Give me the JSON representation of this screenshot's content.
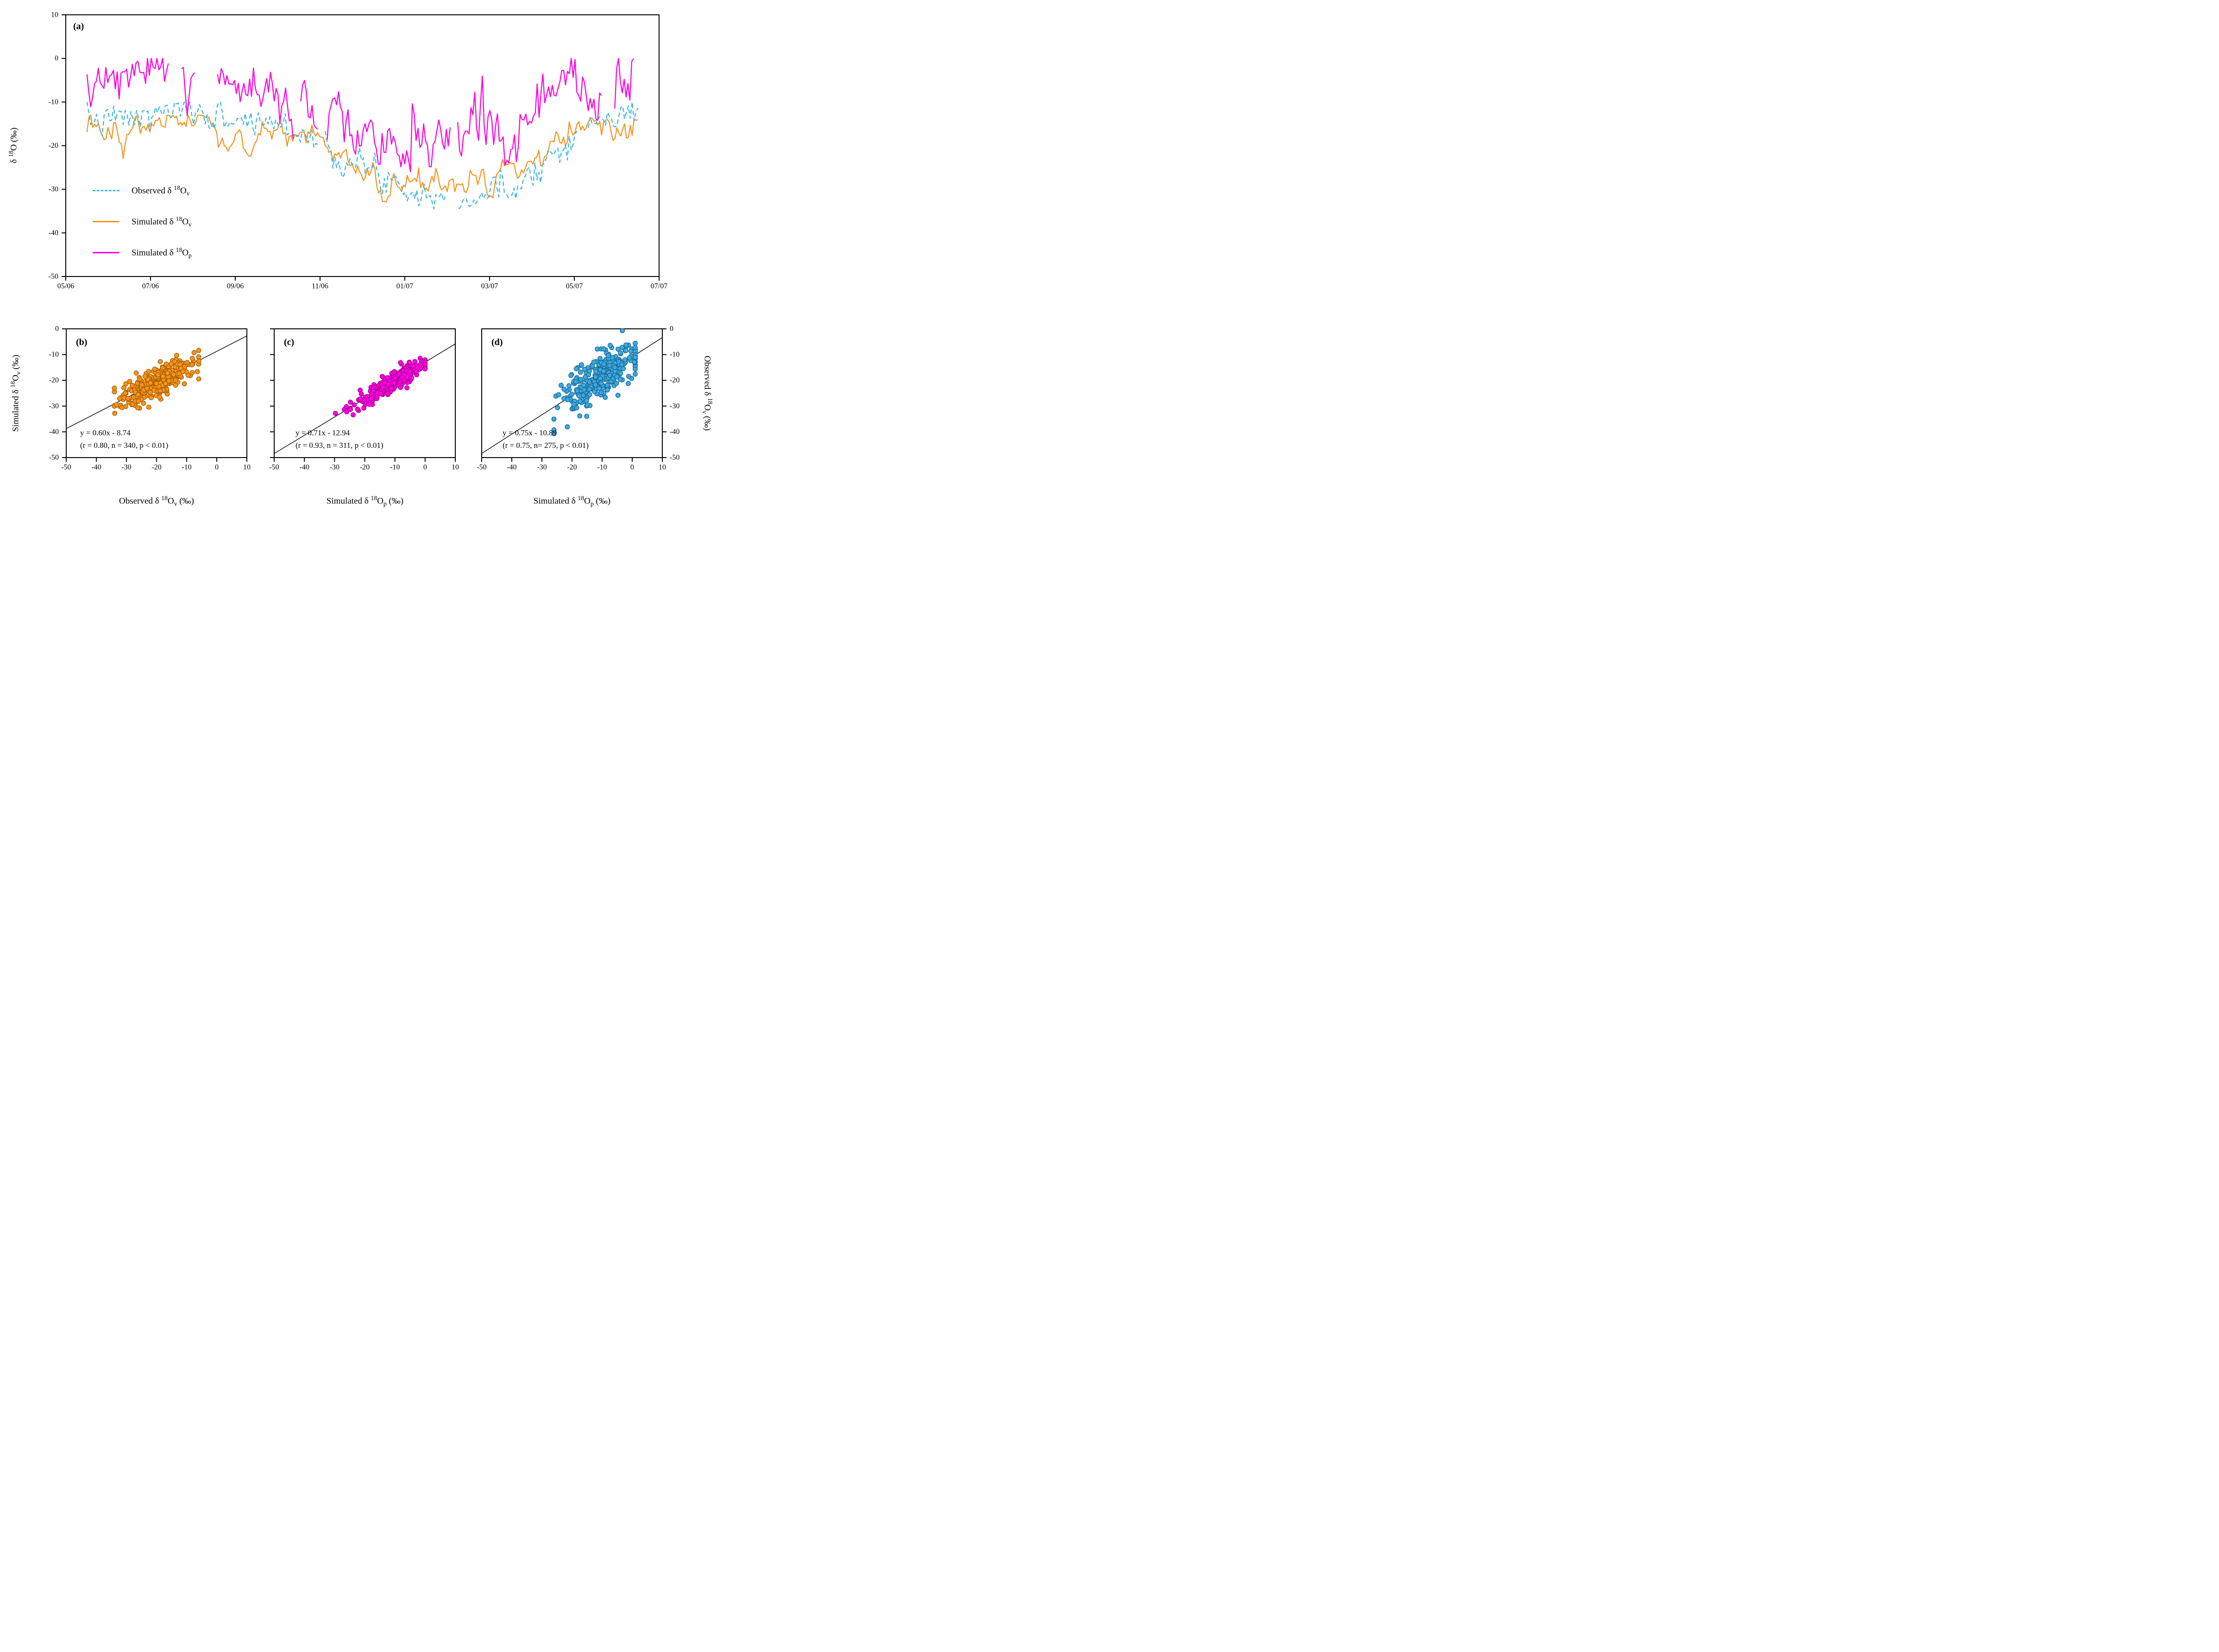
{
  "figure": {
    "background": "#ffffff",
    "axis_color": "#000000"
  },
  "panel_letters": {
    "a": "(a)",
    "b": "(b)",
    "c": "(c)",
    "d": "(d)"
  },
  "labels": {
    "a_y": {
      "pre": "δ ",
      "sup": "18",
      "base": "O",
      "sub": "",
      "post": " (‰)"
    },
    "b_x": {
      "pre": "Observed δ ",
      "sup": "18",
      "base": "O",
      "sub": "v",
      "post": " (‰)"
    },
    "b_y": {
      "pre": "Simulated δ ",
      "sup": "18",
      "base": "O",
      "sub": "v",
      "post": " (‰)"
    },
    "c_x": {
      "pre": "Simulated δ ",
      "sup": "18",
      "base": "O",
      "sub": "p",
      "post": " (‰)"
    },
    "d_x": {
      "pre": "Simulated δ ",
      "sup": "18",
      "base": "O",
      "sub": "p",
      "post": " (‰)"
    },
    "d_y": {
      "pre": "Observed δ ",
      "sup": "18",
      "base": "O",
      "sub": "v",
      "post": " (‰)"
    }
  },
  "legend": {
    "items": [
      {
        "pre": "Observed δ ",
        "sup": "18",
        "base": "O",
        "sub": "v",
        "style": "dashed",
        "color": "#3cb4e8"
      },
      {
        "pre": "Simulated δ ",
        "sup": "18",
        "base": "O",
        "sub": "v",
        "style": "solid",
        "color": "#f7941e"
      },
      {
        "pre": "Simulated δ ",
        "sup": "18",
        "base": "O",
        "sub": "p",
        "style": "solid",
        "color": "#ff00e1"
      }
    ]
  },
  "equations": {
    "b": {
      "line1": "y = 0.60x - 8.74",
      "line2": "(r = 0.80, n = 340, p < 0.01)"
    },
    "c": {
      "line1": "y = 0.71x - 12.94",
      "line2": "(r = 0.93, n = 311, p < 0.01)"
    },
    "d": {
      "line1": "y = 0.75x - 10.89",
      "line2": "(r = 0.75, n= 275, p < 0.01)"
    }
  },
  "chart_data": [
    {
      "panel": "a",
      "type": "line",
      "title": "",
      "x_axis": {
        "range": [
          0,
          14
        ],
        "tick_positions": [
          0,
          2,
          4,
          6,
          8,
          10,
          12,
          14
        ],
        "tick_labels": [
          "05/06",
          "07/06",
          "09/06",
          "11/06",
          "01/07",
          "03/07",
          "05/07",
          "07/07"
        ]
      },
      "y_axis": {
        "label": "δ18O (‰)",
        "range": [
          -50,
          10
        ],
        "ticks": [
          10,
          0,
          -10,
          -20,
          -30,
          -40,
          -50
        ]
      },
      "series": [
        {
          "name": "Observed δ18Ov",
          "color": "#3cb4e8",
          "line": "dashed",
          "z": 1,
          "seed": 7,
          "n": 290,
          "sigma": 1.8,
          "smooth": 0.35,
          "gap_prob": 0.006,
          "clamp_min": -34.5,
          "clamp_max": -10,
          "anchors": [
            [
              0.5,
              -14
            ],
            [
              1,
              -14.5
            ],
            [
              1.5,
              -13.5
            ],
            [
              2,
              -14
            ],
            [
              2.3,
              -11.5
            ],
            [
              2.8,
              -13
            ],
            [
              3.2,
              -12
            ],
            [
              3.6,
              -14
            ],
            [
              4,
              -13.5
            ],
            [
              4.4,
              -15
            ],
            [
              4.8,
              -14
            ],
            [
              5.2,
              -16
            ],
            [
              5.6,
              -17
            ],
            [
              6,
              -19
            ],
            [
              6.4,
              -22
            ],
            [
              6.8,
              -24
            ],
            [
              7.2,
              -26
            ],
            [
              7.6,
              -27
            ],
            [
              8,
              -29
            ],
            [
              8.4,
              -31
            ],
            [
              8.8,
              -32
            ],
            [
              9.2,
              -31
            ],
            [
              9.6,
              -33
            ],
            [
              10,
              -30
            ],
            [
              10.4,
              -31
            ],
            [
              10.8,
              -27
            ],
            [
              11.2,
              -24
            ],
            [
              11.6,
              -21
            ],
            [
              12,
              -17
            ],
            [
              12.4,
              -15
            ],
            [
              12.8,
              -14
            ],
            [
              13.2,
              -13
            ],
            [
              13.5,
              -12.5
            ]
          ]
        },
        {
          "name": "Simulated δ18Ov",
          "color": "#f7941e",
          "line": "solid",
          "z": 0,
          "seed": 13,
          "n": 290,
          "sigma": 1.5,
          "smooth": 0.45,
          "gap_prob": 0,
          "clamp_min": -35.2,
          "clamp_max": -13,
          "anchors": [
            [
              0.5,
              -16
            ],
            [
              1,
              -16.5
            ],
            [
              1.4,
              -19
            ],
            [
              1.6,
              -16
            ],
            [
              2,
              -15.5
            ],
            [
              2.4,
              -14
            ],
            [
              2.8,
              -16
            ],
            [
              3.2,
              -15
            ],
            [
              3.5,
              -17
            ],
            [
              3.8,
              -20
            ],
            [
              4.1,
              -17
            ],
            [
              4.3,
              -24
            ],
            [
              4.6,
              -17
            ],
            [
              5,
              -16
            ],
            [
              5.4,
              -17
            ],
            [
              5.8,
              -18
            ],
            [
              6.2,
              -21
            ],
            [
              6.6,
              -24
            ],
            [
              7,
              -27
            ],
            [
              7.4,
              -29
            ],
            [
              7.55,
              -34
            ],
            [
              7.7,
              -28
            ],
            [
              8,
              -27
            ],
            [
              8.4,
              -29
            ],
            [
              8.8,
              -28
            ],
            [
              9.2,
              -30
            ],
            [
              9.6,
              -26
            ],
            [
              10,
              -29
            ],
            [
              10.3,
              -26
            ],
            [
              10.7,
              -27
            ],
            [
              11,
              -24
            ],
            [
              11.4,
              -21
            ],
            [
              11.8,
              -18
            ],
            [
              12.2,
              -16
            ],
            [
              12.6,
              -15.5
            ],
            [
              13,
              -16
            ],
            [
              13.5,
              -14.5
            ]
          ]
        },
        {
          "name": "Simulated δ18Op",
          "color": "#ff00e1",
          "line": "solid",
          "z": 2,
          "seed": 5,
          "n": 290,
          "sigma": 3.2,
          "smooth": 0.3,
          "gap_prob": 0.02,
          "clamp_min": -26,
          "clamp_max": 0,
          "anchors": [
            [
              0.5,
              -4
            ],
            [
              0.8,
              -5
            ],
            [
              1.1,
              -9
            ],
            [
              1.4,
              -5
            ],
            [
              1.7,
              -4
            ],
            [
              2,
              -3
            ],
            [
              2.3,
              -1
            ],
            [
              2.6,
              -4
            ],
            [
              2.9,
              -6
            ],
            [
              3.2,
              -5
            ],
            [
              3.5,
              -7
            ],
            [
              3.8,
              -5
            ],
            [
              4.1,
              -8
            ],
            [
              4.4,
              -4
            ],
            [
              4.7,
              -6
            ],
            [
              5,
              -8
            ],
            [
              5.3,
              -12
            ],
            [
              5.6,
              -9
            ],
            [
              5.9,
              -13
            ],
            [
              6.2,
              -16
            ],
            [
              6.5,
              -11
            ],
            [
              6.8,
              -19
            ],
            [
              7.1,
              -15
            ],
            [
              7.4,
              -22
            ],
            [
              7.7,
              -17
            ],
            [
              8,
              -21
            ],
            [
              8.3,
              -15
            ],
            [
              8.6,
              -22
            ],
            [
              8.9,
              -16
            ],
            [
              9.2,
              -14
            ],
            [
              9.5,
              -18
            ],
            [
              9.8,
              -13
            ],
            [
              10.1,
              -17
            ],
            [
              10.4,
              -23
            ],
            [
              10.7,
              -12
            ],
            [
              11,
              -10
            ],
            [
              11.3,
              -8
            ],
            [
              11.6,
              -6
            ],
            [
              11.9,
              -7
            ],
            [
              12.2,
              -4
            ],
            [
              12.5,
              -7
            ],
            [
              12.8,
              -5
            ],
            [
              13.1,
              -8
            ],
            [
              13.4,
              -5
            ]
          ]
        }
      ]
    },
    {
      "panel": "b",
      "type": "scatter",
      "color": "#f7941e",
      "edge": "#a85f00",
      "n": 340,
      "seed": 21,
      "x_mean": -20,
      "x_sd": 6.5,
      "x_min": -34,
      "x_max": -6,
      "fit": {
        "slope": 0.6,
        "intercept": -8.74,
        "r": 0.8,
        "p": "< 0.01"
      },
      "noise_sd": 2.9,
      "x_axis": {
        "range": [
          -50,
          10
        ],
        "ticks": [
          -50,
          -40,
          -30,
          -20,
          -10,
          0,
          10
        ],
        "label": "Observed δ18Ov (‰)"
      },
      "y_axis": {
        "range": [
          -50,
          0
        ],
        "ticks": [
          0,
          -10,
          -20,
          -30,
          -40,
          -50
        ],
        "label": "Simulated δ18Ov (‰)",
        "label_side": "left"
      }
    },
    {
      "panel": "c",
      "type": "scatter",
      "color": "#ff00e1",
      "edge": "#aa0097",
      "n": 311,
      "seed": 22,
      "x_mean": -11,
      "x_sd": 6,
      "x_min": -34,
      "x_max": 0,
      "fit": {
        "slope": 0.71,
        "intercept": -12.94,
        "r": 0.93,
        "p": "< 0.01"
      },
      "noise_sd": 1.7,
      "x_axis": {
        "range": [
          -50,
          10
        ],
        "ticks": [
          -50,
          -40,
          -30,
          -20,
          -10,
          0,
          10
        ],
        "label": "Simulated δ18Op (‰)"
      },
      "y_axis": {
        "range": [
          -50,
          0
        ],
        "ticks": [
          0,
          -10,
          -20,
          -30,
          -40,
          -50
        ],
        "label": "",
        "label_side": "none"
      }
    },
    {
      "panel": "d",
      "type": "scatter",
      "color": "#3fa9dc",
      "edge": "#15699b",
      "n": 275,
      "seed": 23,
      "x_mean": -11.5,
      "x_sd": 6.5,
      "x_min": -26,
      "x_max": 1,
      "fit": {
        "slope": 0.75,
        "intercept": -10.89,
        "r": 0.75,
        "p": "< 0.01"
      },
      "noise_sd": 4.6,
      "x_axis": {
        "range": [
          -50,
          10
        ],
        "ticks": [
          -50,
          -40,
          -30,
          -20,
          -10,
          0,
          10
        ],
        "label": "Simulated δ18Op (‰)"
      },
      "y_axis": {
        "range": [
          -50,
          0
        ],
        "ticks": [
          0,
          -10,
          -20,
          -30,
          -40,
          -50
        ],
        "label": "Observed δ18Ov (‰)",
        "label_side": "right"
      }
    }
  ]
}
